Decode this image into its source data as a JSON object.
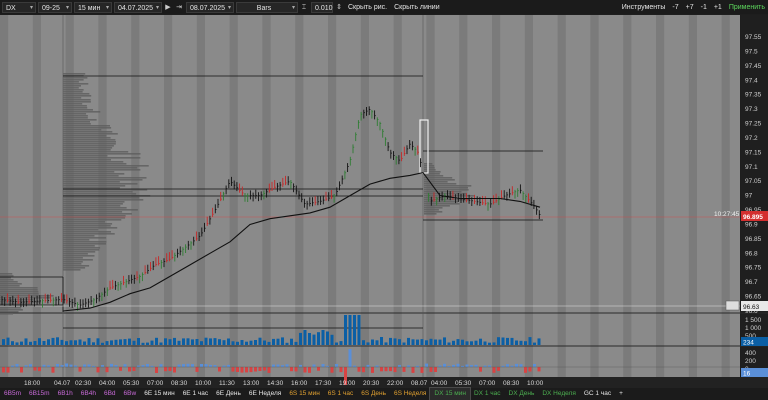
{
  "toolbar": {
    "symbol": "DX",
    "contract": "09-25",
    "timeframe": "15 мин",
    "date_from": "04.07.2025",
    "date_to": "08.07.2025",
    "chart_type": "Bars",
    "tick_size": "0.010",
    "hide_drawings": "Скрыть рис.",
    "hide_lines": "Скрыть линии",
    "tools": "Инструменты",
    "btn_m7": "-7",
    "btn_p7": "+7",
    "btn_m1": "-1",
    "btn_p1": "+1",
    "apply": "Применить"
  },
  "price_axis": {
    "labels": [
      "97.55",
      "97.5",
      "97.45",
      "97.4",
      "97.35",
      "97.3",
      "97.25",
      "97.2",
      "97.15",
      "97.1",
      "97.05",
      "97",
      "96.95",
      "96.9",
      "96.85",
      "96.8",
      "96.75",
      "96.7",
      "96.65",
      "96.6"
    ],
    "last_price": "96.895",
    "last_time": "10:27:45",
    "lower_price": "96.63"
  },
  "volume_axis": {
    "labels": [
      "1 500",
      "1 000",
      "500"
    ],
    "current": "234"
  },
  "delta_axis": {
    "labels": [
      "400",
      "200",
      "0"
    ],
    "current": "16"
  },
  "time_axis": {
    "labels": [
      "18:00",
      "04.07",
      "02:30",
      "04:00",
      "05:30",
      "07:00",
      "08:30",
      "10:00",
      "11:30",
      "13:00",
      "14:30",
      "16:00",
      "17:30",
      "19:00",
      "20:30",
      "22:00",
      "08.07",
      "04:00",
      "05:30",
      "07:00",
      "08:30",
      "10:00"
    ]
  },
  "colors": {
    "bg_light": "#8a8a8a",
    "bg_dark": "#7b7b7b",
    "profile": "#5f5f5f",
    "up": "#2e7d32",
    "down": "#c62828",
    "bar": "#111111",
    "volume": "#0b5fa5",
    "price_badge": "#d32f2f",
    "apply": "#5cd65c"
  },
  "tabs": [
    {
      "label": "6B5m",
      "color": "#c86ad8"
    },
    {
      "label": "6B15m",
      "color": "#c86ad8"
    },
    {
      "label": "6B1h",
      "color": "#c86ad8"
    },
    {
      "label": "6B4h",
      "color": "#c86ad8"
    },
    {
      "label": "6Bd",
      "color": "#c86ad8"
    },
    {
      "label": "6Bw",
      "color": "#c86ad8"
    },
    {
      "label": "6E 15 мин",
      "color": "#e6e6e6"
    },
    {
      "label": "6E 1 час",
      "color": "#e6e6e6"
    },
    {
      "label": "6E День",
      "color": "#e6e6e6"
    },
    {
      "label": "6E Неделя",
      "color": "#e6e6e6"
    },
    {
      "label": "6S 15 мин",
      "color": "#e0a030"
    },
    {
      "label": "6S 1 час",
      "color": "#e0a030"
    },
    {
      "label": "6S День",
      "color": "#e0a030"
    },
    {
      "label": "6S Неделя",
      "color": "#e0a030"
    },
    {
      "label": "DX 15 мин",
      "color": "#4caf50"
    },
    {
      "label": "DX 1 час",
      "color": "#4caf50"
    },
    {
      "label": "DX День",
      "color": "#4caf50"
    },
    {
      "label": "DX Неделя",
      "color": "#4caf50"
    },
    {
      "label": "GC 1 час",
      "color": "#e6e6e6"
    },
    {
      "label": "+",
      "color": "#e6e6e6"
    }
  ]
}
